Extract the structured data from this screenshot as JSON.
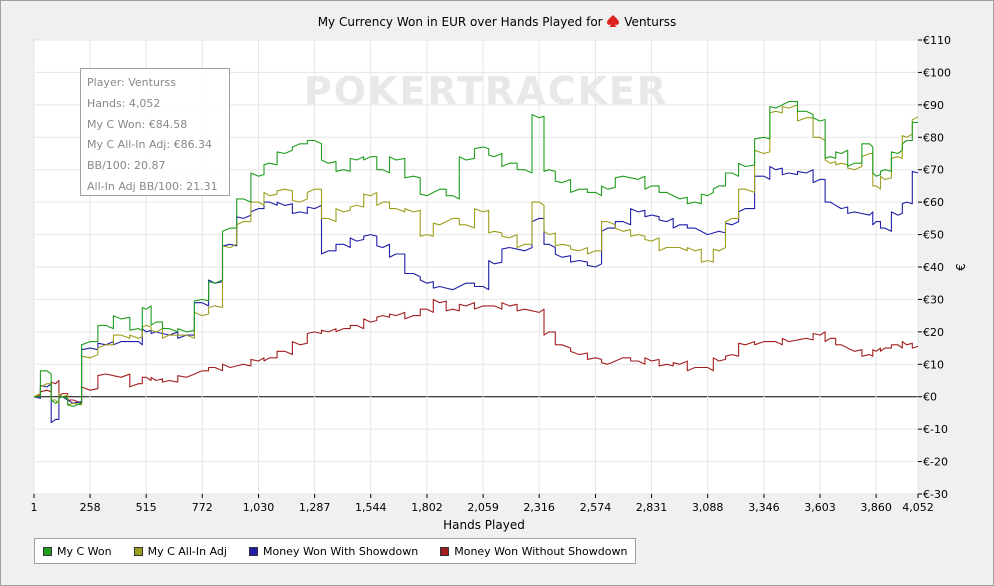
{
  "header": {
    "title_prefix": "My Currency Won in EUR over Hands Played for",
    "player": "Venturss"
  },
  "watermark": {
    "text": "POKERTRACKER"
  },
  "info": {
    "player": "Player: Venturss",
    "hands": "Hands: 4,052",
    "won": "My C Won: €84.58",
    "allin": "My C All-In Adj: €86.34",
    "bb100": "BB/100: 20.87",
    "allin_bb100": "All-In Adj BB/100: 21.31"
  },
  "colors": {
    "green": "#1f9e1f",
    "olive": "#9e9e1f",
    "blue": "#1f1fa8",
    "red": "#a31f1f"
  },
  "chart_data": {
    "type": "line",
    "title": "My Currency Won in EUR over Hands Played for Venturss",
    "xlabel": "Hands Played",
    "ylabel": "€",
    "xlim": [
      1,
      4052
    ],
    "ylim": [
      -30,
      110
    ],
    "grid": true,
    "legend_position": "bottom",
    "x_ticks": [
      "1",
      "258",
      "515",
      "772",
      "1,030",
      "1,287",
      "1,544",
      "1,802",
      "2,059",
      "2,316",
      "2,574",
      "2,831",
      "3,088",
      "3,346",
      "3,603",
      "3,860",
      "4,052"
    ],
    "x_tick_values": [
      1,
      258,
      515,
      772,
      1030,
      1287,
      1544,
      1802,
      2059,
      2316,
      2574,
      2831,
      3088,
      3346,
      3603,
      3860,
      4052
    ],
    "y_ticks": [
      "€110",
      "€100",
      "€90",
      "€80",
      "€70",
      "€60",
      "€50",
      "€40",
      "€30",
      "€20",
      "€10",
      "€0",
      "€-10",
      "€-20",
      "€-30"
    ],
    "y_tick_values": [
      110,
      100,
      90,
      80,
      70,
      60,
      50,
      40,
      30,
      20,
      10,
      0,
      -10,
      -20,
      -30
    ],
    "x": [
      1,
      60,
      100,
      130,
      180,
      258,
      330,
      400,
      480,
      515,
      560,
      620,
      700,
      772,
      830,
      900,
      960,
      1030,
      1080,
      1150,
      1220,
      1287,
      1350,
      1420,
      1480,
      1544,
      1600,
      1660,
      1740,
      1802,
      1860,
      1920,
      1980,
      2059,
      2110,
      2180,
      2250,
      2316,
      2360,
      2420,
      2500,
      2574,
      2630,
      2700,
      2770,
      2831,
      2900,
      2960,
      3030,
      3088,
      3140,
      3200,
      3260,
      3346,
      3400,
      3460,
      3540,
      3603,
      3650,
      3700,
      3760,
      3830,
      3860,
      3900,
      3960,
      4000,
      4052
    ],
    "series": [
      {
        "name": "My C Won",
        "color": "#1f9e1f",
        "values": [
          0,
          8,
          -2,
          0,
          -3,
          17,
          22,
          24,
          21,
          27,
          23,
          21,
          20,
          30,
          35,
          52,
          61,
          68,
          72,
          75,
          78,
          79,
          72,
          70,
          73,
          74,
          70,
          73,
          68,
          62,
          64,
          62,
          73,
          77,
          74,
          72,
          70,
          86,
          70,
          66,
          64,
          63,
          64,
          68,
          67,
          65,
          63,
          61,
          60,
          62,
          65,
          69,
          71,
          80,
          89,
          91,
          88,
          85,
          74,
          75,
          72,
          78,
          68,
          70,
          75,
          79,
          84.58
        ]
      },
      {
        "name": "My C All-In Adj",
        "color": "#9e9e1f",
        "values": [
          0,
          4,
          -1,
          0,
          -2,
          12,
          16,
          19,
          18,
          22,
          20,
          19,
          19,
          25,
          28,
          46,
          54,
          60,
          62,
          64,
          60,
          64,
          55,
          57,
          59,
          62,
          60,
          58,
          57,
          50,
          53,
          55,
          53,
          57,
          51,
          49,
          47,
          60,
          50,
          47,
          45,
          45,
          54,
          51,
          50,
          48,
          46,
          46,
          45,
          42,
          45,
          55,
          64,
          75,
          88,
          89,
          86,
          80,
          72,
          72,
          70,
          75,
          65,
          67,
          74,
          80,
          86.34
        ]
      },
      {
        "name": "Money Won With Showdown",
        "color": "#1f1fa8",
        "values": [
          0,
          3,
          -7,
          0,
          -2,
          15,
          16,
          17,
          17,
          20,
          20,
          19,
          19,
          29,
          35,
          47,
          55,
          58,
          60,
          59,
          57,
          58,
          45,
          47,
          48,
          50,
          46,
          44,
          38,
          35,
          34,
          33,
          35,
          34,
          41,
          46,
          45,
          55,
          47,
          43,
          42,
          40,
          52,
          54,
          57,
          56,
          54,
          53,
          52,
          50,
          51,
          53,
          58,
          68,
          70,
          69,
          69,
          67,
          60,
          58,
          57,
          56,
          54,
          52,
          56,
          60,
          69
        ]
      },
      {
        "name": "Money Won Without Showdown",
        "color": "#a31f1f",
        "values": [
          0,
          2,
          4,
          1,
          -1,
          2,
          7,
          6,
          4,
          6,
          5,
          5,
          6,
          8,
          9,
          9,
          10,
          11,
          12,
          14,
          16,
          20,
          20,
          21,
          22,
          23,
          25,
          25,
          25,
          27,
          29,
          27,
          28,
          28,
          28,
          28,
          27,
          26,
          20,
          16,
          13,
          12,
          10,
          12,
          11,
          11,
          10,
          10,
          9,
          9,
          11,
          13,
          16,
          17,
          17,
          17,
          18,
          19,
          18,
          16,
          14,
          13,
          14,
          15,
          16,
          16,
          15.5
        ]
      }
    ]
  }
}
